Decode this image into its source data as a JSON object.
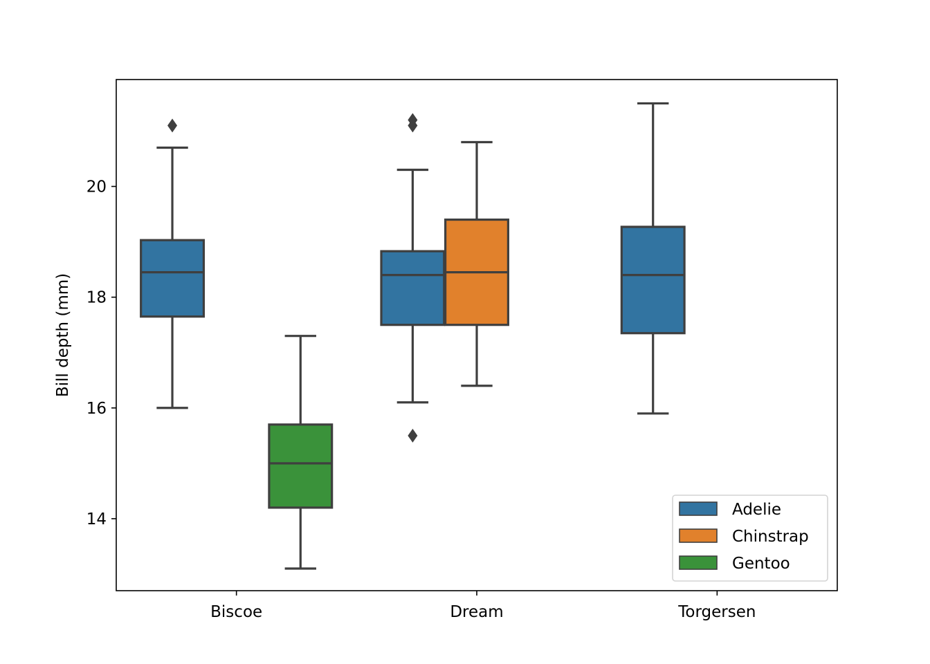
{
  "chart_data": {
    "type": "box",
    "title": "",
    "xlabel": "",
    "ylabel": "Bill depth (mm)",
    "categories": [
      "Biscoe",
      "Dream",
      "Torgersen"
    ],
    "hue_order": [
      "Adelie",
      "Chinstrap",
      "Gentoo"
    ],
    "colors": {
      "Adelie": "#3274a1",
      "Chinstrap": "#e1812c",
      "Gentoo": "#3a923a"
    },
    "ylim": [
      12.7,
      21.93
    ],
    "yticks": [
      14,
      16,
      18,
      20
    ],
    "grid": false,
    "legend": {
      "placement": "lower right",
      "entries": [
        "Adelie",
        "Chinstrap",
        "Gentoo"
      ]
    },
    "boxes": [
      {
        "category": "Biscoe",
        "species": "Adelie",
        "whisker_low": 16.0,
        "q1": 17.65,
        "median": 18.45,
        "q3": 19.03,
        "whisker_high": 20.7,
        "outliers": [
          21.1
        ]
      },
      {
        "category": "Biscoe",
        "species": "Gentoo",
        "whisker_low": 13.1,
        "q1": 14.2,
        "median": 15.0,
        "q3": 15.7,
        "whisker_high": 17.3,
        "outliers": []
      },
      {
        "category": "Dream",
        "species": "Adelie",
        "whisker_low": 16.1,
        "q1": 17.5,
        "median": 18.4,
        "q3": 18.83,
        "whisker_high": 20.3,
        "outliers": [
          21.1,
          21.2,
          15.5
        ]
      },
      {
        "category": "Dream",
        "species": "Chinstrap",
        "whisker_low": 16.4,
        "q1": 17.5,
        "median": 18.45,
        "q3": 19.4,
        "whisker_high": 20.8,
        "outliers": []
      },
      {
        "category": "Torgersen",
        "species": "Adelie",
        "whisker_low": 15.9,
        "q1": 17.35,
        "median": 18.4,
        "q3": 19.27,
        "whisker_high": 21.5,
        "outliers": []
      }
    ]
  }
}
